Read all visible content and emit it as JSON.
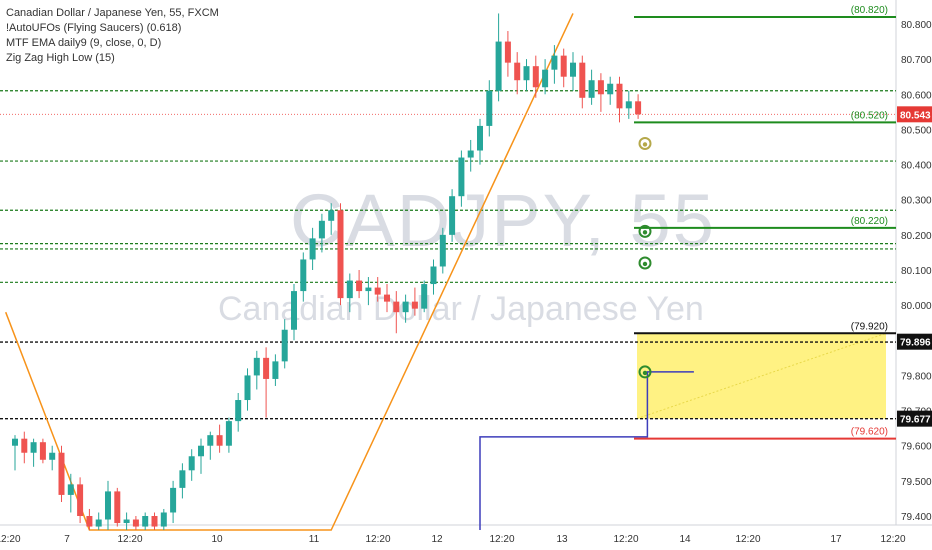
{
  "legend": {
    "symbol": "Canadian Dollar / Japanese Yen, 55, FXCM",
    "indicator_1": "!AutoUFOs (Flying Saucers) (0.618)",
    "indicator_2": "MTF EMA daily9 (9, close, 0, D)",
    "indicator_3": "Zig Zag High Low (15)"
  },
  "watermark": {
    "ticker": "CADJPY, 55",
    "name": "Canadian Dollar / Japanese Yen"
  },
  "colors": {
    "up_candle": "#26a69a",
    "down_candle": "#ef5350",
    "zigzag": "#f7931a",
    "ema": "#3d3dbb",
    "target_line": "#1e8c1e",
    "stop_line": "#e53935",
    "zone_fill": "#fff176",
    "dotted_level": "#1a7a1a",
    "last_price_line": "#ef5350"
  },
  "chart_data": {
    "type": "candlestick",
    "symbol": "CADJPY",
    "timeframe": "55",
    "ylim": [
      79.36,
      80.86
    ],
    "y_ticks": [
      "80.800",
      "80.700",
      "80.600",
      "80.500",
      "80.400",
      "80.300",
      "80.200",
      "80.100",
      "80.000",
      "79.900",
      "79.800",
      "79.700",
      "79.600",
      "79.500",
      "79.400"
    ],
    "x_ticks": [
      "12:20",
      "7",
      "12:20",
      "10",
      "11",
      "12:20",
      "12",
      "12:20",
      "13",
      "12:20",
      "14",
      "12:20",
      "17",
      "12:20"
    ],
    "last_price": 80.543,
    "last_price_label": "80.543",
    "price_labels": [
      {
        "value": 80.82,
        "text": "(80.820)",
        "kind": "target"
      },
      {
        "value": 80.52,
        "text": "(80.520)",
        "kind": "target"
      },
      {
        "value": 80.22,
        "text": "(80.220)",
        "kind": "target"
      },
      {
        "value": 79.92,
        "text": "(79.920)",
        "kind": "zone_top"
      },
      {
        "value": 79.62,
        "text": "(79.620)",
        "kind": "stop"
      }
    ],
    "axis_badges": [
      {
        "value": 79.896,
        "text": "79.896"
      },
      {
        "value": 79.677,
        "text": "79.677"
      }
    ],
    "dotted_levels": [
      80.61,
      80.41,
      80.27,
      80.175,
      80.16,
      80.065,
      79.895,
      79.677
    ],
    "zone": {
      "top": 79.92,
      "bottom": 79.677
    },
    "candles": [
      {
        "o": 79.6,
        "h": 79.63,
        "l": 79.53,
        "c": 79.62
      },
      {
        "o": 79.62,
        "h": 79.64,
        "l": 79.55,
        "c": 79.58
      },
      {
        "o": 79.58,
        "h": 79.62,
        "l": 79.54,
        "c": 79.61
      },
      {
        "o": 79.61,
        "h": 79.62,
        "l": 79.55,
        "c": 79.56
      },
      {
        "o": 79.56,
        "h": 79.6,
        "l": 79.53,
        "c": 79.58
      },
      {
        "o": 79.58,
        "h": 79.6,
        "l": 79.44,
        "c": 79.46
      },
      {
        "o": 79.46,
        "h": 79.52,
        "l": 79.41,
        "c": 79.49
      },
      {
        "o": 79.49,
        "h": 79.51,
        "l": 79.38,
        "c": 79.4
      },
      {
        "o": 79.4,
        "h": 79.42,
        "l": 79.36,
        "c": 79.37
      },
      {
        "o": 79.37,
        "h": 79.41,
        "l": 79.36,
        "c": 79.39
      },
      {
        "o": 79.39,
        "h": 79.5,
        "l": 79.36,
        "c": 79.47
      },
      {
        "o": 79.47,
        "h": 79.48,
        "l": 79.37,
        "c": 79.38
      },
      {
        "o": 79.38,
        "h": 79.41,
        "l": 79.36,
        "c": 79.39
      },
      {
        "o": 79.39,
        "h": 79.4,
        "l": 79.36,
        "c": 79.37
      },
      {
        "o": 79.37,
        "h": 79.41,
        "l": 79.36,
        "c": 79.4
      },
      {
        "o": 79.4,
        "h": 79.41,
        "l": 79.36,
        "c": 79.37
      },
      {
        "o": 79.37,
        "h": 79.42,
        "l": 79.36,
        "c": 79.41
      },
      {
        "o": 79.41,
        "h": 79.5,
        "l": 79.38,
        "c": 79.48
      },
      {
        "o": 79.48,
        "h": 79.55,
        "l": 79.45,
        "c": 79.53
      },
      {
        "o": 79.53,
        "h": 79.59,
        "l": 79.5,
        "c": 79.57
      },
      {
        "o": 79.57,
        "h": 79.62,
        "l": 79.52,
        "c": 79.6
      },
      {
        "o": 79.6,
        "h": 79.64,
        "l": 79.56,
        "c": 79.63
      },
      {
        "o": 79.63,
        "h": 79.66,
        "l": 79.58,
        "c": 79.6
      },
      {
        "o": 79.6,
        "h": 79.68,
        "l": 79.58,
        "c": 79.67
      },
      {
        "o": 79.67,
        "h": 79.75,
        "l": 79.64,
        "c": 79.73
      },
      {
        "o": 79.73,
        "h": 79.82,
        "l": 79.7,
        "c": 79.8
      },
      {
        "o": 79.8,
        "h": 79.87,
        "l": 79.76,
        "c": 79.85
      },
      {
        "o": 79.85,
        "h": 79.88,
        "l": 79.68,
        "c": 79.79
      },
      {
        "o": 79.79,
        "h": 79.86,
        "l": 79.77,
        "c": 79.84
      },
      {
        "o": 79.84,
        "h": 79.96,
        "l": 79.82,
        "c": 79.93
      },
      {
        "o": 79.93,
        "h": 80.06,
        "l": 79.9,
        "c": 80.04
      },
      {
        "o": 80.04,
        "h": 80.15,
        "l": 80.01,
        "c": 80.13
      },
      {
        "o": 80.13,
        "h": 80.22,
        "l": 80.1,
        "c": 80.19
      },
      {
        "o": 80.19,
        "h": 80.26,
        "l": 80.15,
        "c": 80.24
      },
      {
        "o": 80.24,
        "h": 80.29,
        "l": 80.2,
        "c": 80.27
      },
      {
        "o": 80.27,
        "h": 80.29,
        "l": 80.0,
        "c": 80.02
      },
      {
        "o": 80.02,
        "h": 80.09,
        "l": 79.98,
        "c": 80.07
      },
      {
        "o": 80.07,
        "h": 80.1,
        "l": 80.02,
        "c": 80.04
      },
      {
        "o": 80.04,
        "h": 80.08,
        "l": 80.0,
        "c": 80.05
      },
      {
        "o": 80.05,
        "h": 80.08,
        "l": 80.01,
        "c": 80.03
      },
      {
        "o": 80.03,
        "h": 80.06,
        "l": 79.98,
        "c": 80.01
      },
      {
        "o": 80.01,
        "h": 80.04,
        "l": 79.92,
        "c": 79.98
      },
      {
        "o": 79.98,
        "h": 80.03,
        "l": 79.95,
        "c": 80.01
      },
      {
        "o": 80.01,
        "h": 80.05,
        "l": 79.97,
        "c": 79.99
      },
      {
        "o": 79.99,
        "h": 80.07,
        "l": 79.98,
        "c": 80.06
      },
      {
        "o": 80.06,
        "h": 80.13,
        "l": 80.03,
        "c": 80.11
      },
      {
        "o": 80.11,
        "h": 80.22,
        "l": 80.09,
        "c": 80.2
      },
      {
        "o": 80.2,
        "h": 80.33,
        "l": 80.18,
        "c": 80.31
      },
      {
        "o": 80.31,
        "h": 80.44,
        "l": 80.28,
        "c": 80.42
      },
      {
        "o": 80.42,
        "h": 80.47,
        "l": 80.38,
        "c": 80.44
      },
      {
        "o": 80.44,
        "h": 80.53,
        "l": 80.4,
        "c": 80.51
      },
      {
        "o": 80.51,
        "h": 80.64,
        "l": 80.48,
        "c": 80.61
      },
      {
        "o": 80.61,
        "h": 80.83,
        "l": 80.58,
        "c": 80.75
      },
      {
        "o": 80.75,
        "h": 80.78,
        "l": 80.65,
        "c": 80.69
      },
      {
        "o": 80.69,
        "h": 80.72,
        "l": 80.6,
        "c": 80.64
      },
      {
        "o": 80.64,
        "h": 80.7,
        "l": 80.61,
        "c": 80.68
      },
      {
        "o": 80.68,
        "h": 80.71,
        "l": 80.59,
        "c": 80.62
      },
      {
        "o": 80.62,
        "h": 80.7,
        "l": 80.6,
        "c": 80.67
      },
      {
        "o": 80.67,
        "h": 80.74,
        "l": 80.63,
        "c": 80.71
      },
      {
        "o": 80.71,
        "h": 80.73,
        "l": 80.62,
        "c": 80.65
      },
      {
        "o": 80.65,
        "h": 80.72,
        "l": 80.61,
        "c": 80.69
      },
      {
        "o": 80.69,
        "h": 80.71,
        "l": 80.56,
        "c": 80.59
      },
      {
        "o": 80.59,
        "h": 80.67,
        "l": 80.57,
        "c": 80.64
      },
      {
        "o": 80.64,
        "h": 80.66,
        "l": 80.55,
        "c": 80.6
      },
      {
        "o": 80.6,
        "h": 80.65,
        "l": 80.57,
        "c": 80.63
      },
      {
        "o": 80.63,
        "h": 80.65,
        "l": 80.52,
        "c": 80.56
      },
      {
        "o": 80.56,
        "h": 80.61,
        "l": 80.53,
        "c": 80.58
      },
      {
        "o": 80.58,
        "h": 80.6,
        "l": 80.53,
        "c": 80.543
      }
    ],
    "zigzag": [
      {
        "i": -1,
        "v": 79.98
      },
      {
        "i": 8,
        "v": 79.36
      },
      {
        "i": 34,
        "v": 79.36
      },
      {
        "i": 60,
        "v": 80.83
      }
    ],
    "ema": [
      {
        "i": 50,
        "v": 79.36
      },
      {
        "i": 50,
        "v": 79.625
      },
      {
        "i": 68,
        "v": 79.625
      },
      {
        "i": 68,
        "v": 79.81
      },
      {
        "i": 73,
        "v": 79.81
      }
    ]
  }
}
